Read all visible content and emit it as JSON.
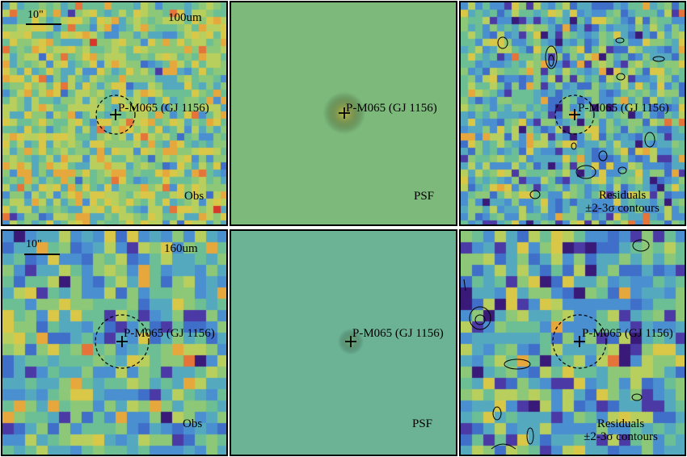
{
  "rows": [
    {
      "band": "100um",
      "scale_label": "10\"",
      "source_name": "P-M065 (GJ 1156)",
      "panels": [
        {
          "kind": "obs",
          "tag_lines": [
            "Obs"
          ]
        },
        {
          "kind": "psf",
          "tag_lines": [
            "PSF"
          ]
        },
        {
          "kind": "res",
          "tag_lines": [
            "Residuals",
            "±2-3σ contours"
          ]
        }
      ]
    },
    {
      "band": "160um",
      "scale_label": "10\"",
      "source_name": "P-M065 (GJ 1156)",
      "panels": [
        {
          "kind": "obs",
          "tag_lines": [
            "Obs"
          ]
        },
        {
          "kind": "psf",
          "tag_lines": [
            "PSF"
          ]
        },
        {
          "kind": "res",
          "tag_lines": [
            "Residuals",
            "±2-3σ contours"
          ]
        }
      ]
    }
  ],
  "colors": {
    "psf_background": "#7cb97a",
    "psf_background_160": "#6cb396",
    "frame": "#000000"
  }
}
